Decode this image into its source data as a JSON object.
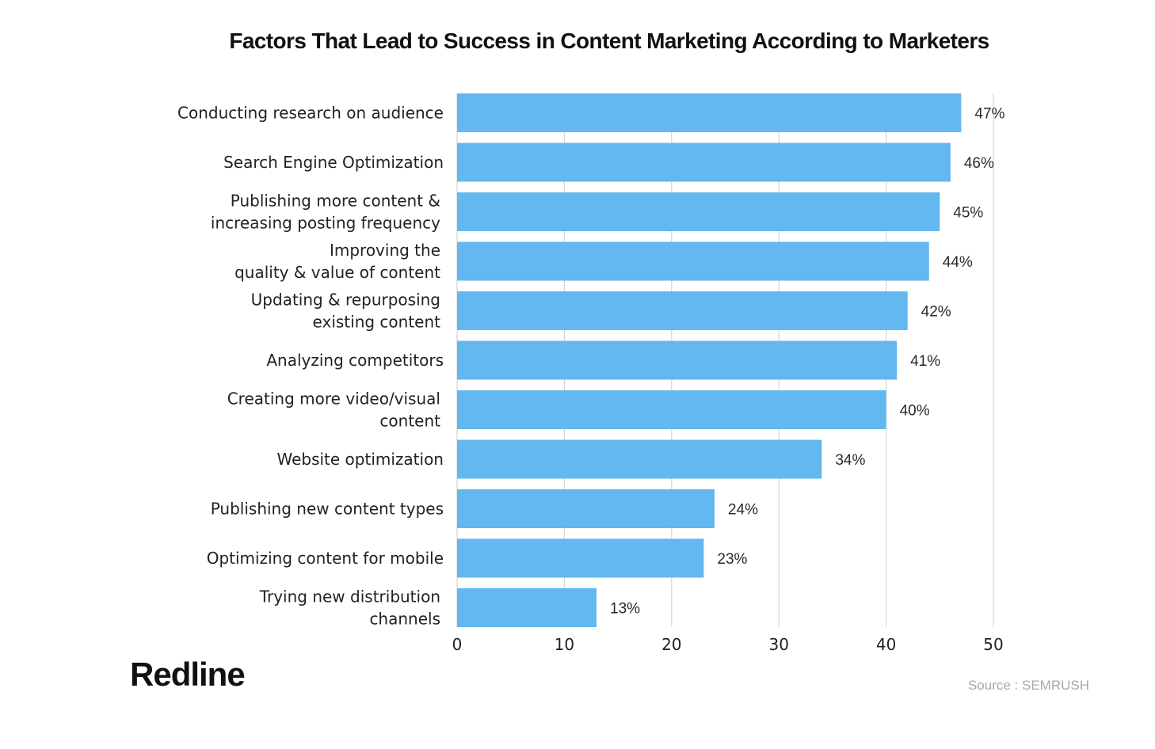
{
  "chart_data": {
    "type": "bar",
    "orientation": "horizontal",
    "title": "Factors That Lead to Success in Content Marketing According to Marketers",
    "categories": [
      "Conducting research on audience",
      "Search Engine Optimization",
      "Publishing more content &\nincreasing posting frequency",
      "Improving the\nquality & value of content",
      "Updating & repurposing\nexisting content",
      "Analyzing competitors",
      "Creating more video/visual\ncontent",
      "Website optimization",
      "Publishing new content types",
      "Optimizing content for mobile",
      "Trying new distribution\nchannels"
    ],
    "values": [
      47,
      46,
      45,
      44,
      42,
      41,
      40,
      34,
      24,
      23,
      13
    ],
    "value_labels": [
      "47%",
      "46%",
      "45%",
      "44%",
      "42%",
      "41%",
      "40%",
      "34%",
      "24%",
      "23%",
      "13%"
    ],
    "xlim": [
      0,
      50
    ],
    "xticks": [
      0,
      10,
      20,
      30,
      40,
      50
    ],
    "grid": true,
    "bar_color": "#62b8ef",
    "grid_color": "#d4d4d4"
  },
  "brand": {
    "logo": "Redline"
  },
  "source": "Source : SEMRUSH"
}
